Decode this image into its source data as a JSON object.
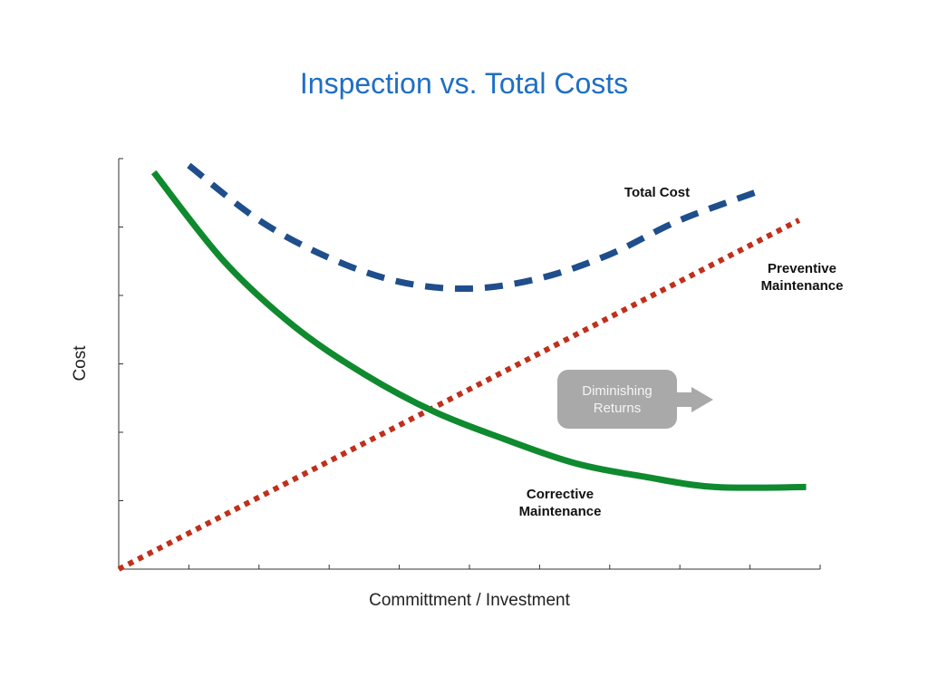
{
  "chart_data": {
    "type": "line",
    "title": "Inspection vs. Total Costs",
    "xlabel": "Committment / Investment",
    "ylabel": "Cost",
    "xlim": [
      0,
      10
    ],
    "ylim": [
      0,
      6
    ],
    "x_ticks": 10,
    "y_ticks": 6,
    "grid": false,
    "series": [
      {
        "name": "Total Cost",
        "label_text": "Total Cost",
        "color": "#1f4e8c",
        "style": "dashed",
        "x": [
          1.0,
          2.0,
          3.0,
          4.0,
          5.0,
          6.0,
          7.0,
          8.0,
          9.2
        ],
        "y": [
          5.9,
          5.1,
          4.55,
          4.2,
          4.1,
          4.25,
          4.6,
          5.1,
          5.55
        ]
      },
      {
        "name": "Preventive Maintenance",
        "label_text": "Preventive\nMaintenance",
        "color": "#c0301c",
        "style": "dotted",
        "x": [
          0,
          9.7
        ],
        "y": [
          0,
          5.1
        ]
      },
      {
        "name": "Corrective Maintenance",
        "label_text": "Corrective\nMaintenance",
        "color": "#0f8a2e",
        "style": "solid",
        "x": [
          0.5,
          1.5,
          2.5,
          3.5,
          4.5,
          5.5,
          6.5,
          7.5,
          8.5,
          9.8
        ],
        "y": [
          5.8,
          4.5,
          3.55,
          2.85,
          2.3,
          1.9,
          1.55,
          1.35,
          1.2,
          1.2
        ]
      }
    ],
    "annotations": [
      {
        "text": "Diminishing\nReturns",
        "color": "#a9a9a9"
      }
    ]
  }
}
